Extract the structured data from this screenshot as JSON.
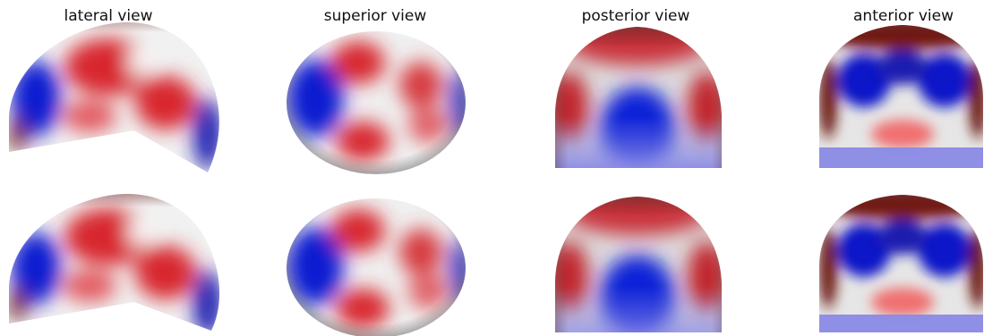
{
  "titles": {
    "lateral": "lateral view",
    "superior": "superior view",
    "posterior": "posterior view",
    "anterior": "anterior view"
  },
  "colors": {
    "blue": "#0a1ad0",
    "red": "#d8262e",
    "white": "#f4f4f4",
    "dark_red": "#6b1410",
    "dark_blue": "#0b0b55",
    "light_blue": "#8a8ae6"
  }
}
